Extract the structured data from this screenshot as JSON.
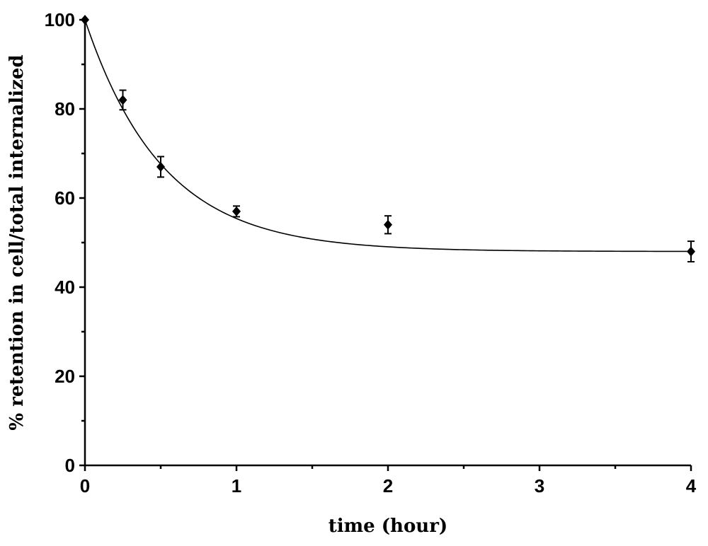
{
  "chart_data": {
    "type": "scatter",
    "title": "",
    "xlabel": "time (hour)",
    "ylabel": "% retention in cell/total internalized",
    "xlim": [
      0,
      4
    ],
    "ylim": [
      0,
      100
    ],
    "x_ticks": [
      0,
      1,
      2,
      3,
      4
    ],
    "y_ticks": [
      0,
      20,
      40,
      60,
      80,
      100
    ],
    "x_tick_labels": [
      "0",
      "1",
      "2",
      "3",
      "4"
    ],
    "y_tick_labels": [
      "0",
      "20",
      "40",
      "60",
      "80",
      "100"
    ],
    "grid": false,
    "legend": "none",
    "series": [
      {
        "marker": "diamond",
        "x": [
          0,
          0.25,
          0.5,
          1,
          2,
          4
        ],
        "y": [
          100,
          82,
          67,
          57,
          54,
          48
        ],
        "error": [
          0,
          2.2,
          2.3,
          1.2,
          2.0,
          2.3
        ]
      }
    ],
    "fit_curve": {
      "type": "exponential-decay",
      "plateau": 48,
      "span": 52,
      "k": 1.95
    }
  }
}
